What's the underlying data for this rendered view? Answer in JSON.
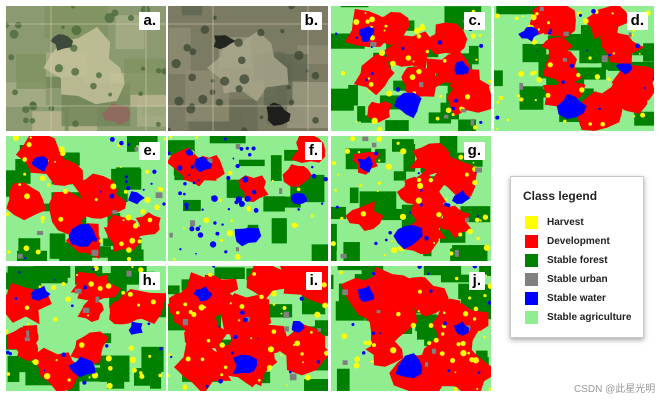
{
  "panels": [
    {
      "label": "a.",
      "style": "sat1"
    },
    {
      "label": "b.",
      "style": "sat2"
    },
    {
      "label": "c.",
      "style": "map"
    },
    {
      "label": "d.",
      "style": "map"
    },
    {
      "label": "e.",
      "style": "map"
    },
    {
      "label": "f.",
      "style": "map"
    },
    {
      "label": "g.",
      "style": "map"
    },
    {
      "label": "h.",
      "style": "map"
    },
    {
      "label": "i.",
      "style": "map"
    },
    {
      "label": "j.",
      "style": "map"
    }
  ],
  "legend": {
    "title": "Class legend",
    "items": [
      {
        "label": "Harvest",
        "color": "#ffff00"
      },
      {
        "label": "Development",
        "color": "#ff0000"
      },
      {
        "label": "Stable forest",
        "color": "#008000"
      },
      {
        "label": "Stable urban",
        "color": "#808080"
      },
      {
        "label": "Stable water",
        "color": "#0000ff"
      },
      {
        "label": "Stable agriculture",
        "color": "#90ee90"
      }
    ]
  },
  "watermark": "CSDN @此星光明"
}
